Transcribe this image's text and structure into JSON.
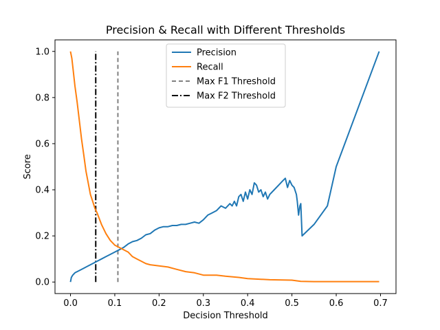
{
  "chart_data": {
    "type": "line",
    "title": "Precision & Recall with Different Thresholds",
    "xlabel": "Decision Threshold",
    "ylabel": "Score",
    "xlim": [
      -0.035,
      0.735
    ],
    "ylim": [
      -0.05,
      1.05
    ],
    "xticks": [
      0.0,
      0.1,
      0.2,
      0.3,
      0.4,
      0.5,
      0.6,
      0.7
    ],
    "yticks": [
      0.0,
      0.2,
      0.4,
      0.6,
      0.8,
      1.0
    ],
    "grid": false,
    "legend_position": "upper center",
    "series": [
      {
        "name": "Precision",
        "color": "#1f77b4",
        "style": "solid",
        "x": [
          0.0,
          0.002,
          0.005,
          0.01,
          0.015,
          0.02,
          0.03,
          0.04,
          0.05,
          0.055,
          0.06,
          0.07,
          0.08,
          0.09,
          0.1,
          0.11,
          0.12,
          0.13,
          0.14,
          0.15,
          0.16,
          0.17,
          0.18,
          0.19,
          0.2,
          0.21,
          0.22,
          0.23,
          0.24,
          0.25,
          0.26,
          0.27,
          0.28,
          0.29,
          0.3,
          0.31,
          0.32,
          0.33,
          0.34,
          0.35,
          0.36,
          0.365,
          0.37,
          0.375,
          0.38,
          0.385,
          0.39,
          0.395,
          0.4,
          0.405,
          0.41,
          0.415,
          0.42,
          0.425,
          0.43,
          0.435,
          0.44,
          0.445,
          0.45,
          0.46,
          0.47,
          0.48,
          0.485,
          0.49,
          0.495,
          0.5,
          0.505,
          0.51,
          0.512,
          0.515,
          0.518,
          0.52,
          0.523,
          0.55,
          0.58,
          0.6,
          0.697
        ],
        "y": [
          0.0,
          0.02,
          0.03,
          0.04,
          0.045,
          0.05,
          0.06,
          0.07,
          0.08,
          0.085,
          0.09,
          0.1,
          0.11,
          0.12,
          0.13,
          0.14,
          0.15,
          0.165,
          0.175,
          0.18,
          0.19,
          0.205,
          0.21,
          0.225,
          0.235,
          0.24,
          0.24,
          0.245,
          0.245,
          0.25,
          0.25,
          0.255,
          0.26,
          0.255,
          0.27,
          0.29,
          0.3,
          0.31,
          0.33,
          0.32,
          0.34,
          0.33,
          0.35,
          0.33,
          0.37,
          0.38,
          0.35,
          0.39,
          0.36,
          0.4,
          0.38,
          0.43,
          0.42,
          0.39,
          0.4,
          0.37,
          0.39,
          0.36,
          0.38,
          0.4,
          0.42,
          0.44,
          0.45,
          0.41,
          0.44,
          0.42,
          0.41,
          0.38,
          0.35,
          0.29,
          0.33,
          0.34,
          0.2,
          0.25,
          0.33,
          0.5,
          1.0
        ]
      },
      {
        "name": "Recall",
        "color": "#ff7f0e",
        "style": "solid",
        "x": [
          0.0,
          0.003,
          0.006,
          0.01,
          0.015,
          0.02,
          0.025,
          0.03,
          0.035,
          0.04,
          0.045,
          0.05,
          0.055,
          0.06,
          0.07,
          0.08,
          0.09,
          0.1,
          0.11,
          0.12,
          0.13,
          0.14,
          0.15,
          0.16,
          0.17,
          0.18,
          0.2,
          0.22,
          0.24,
          0.26,
          0.28,
          0.3,
          0.33,
          0.35,
          0.38,
          0.4,
          0.45,
          0.5,
          0.52,
          0.55,
          0.6,
          0.65,
          0.697
        ],
        "y": [
          1.0,
          0.97,
          0.92,
          0.85,
          0.78,
          0.7,
          0.62,
          0.55,
          0.48,
          0.43,
          0.38,
          0.35,
          0.32,
          0.3,
          0.25,
          0.21,
          0.18,
          0.16,
          0.15,
          0.14,
          0.13,
          0.11,
          0.1,
          0.09,
          0.08,
          0.075,
          0.07,
          0.065,
          0.055,
          0.045,
          0.04,
          0.03,
          0.03,
          0.025,
          0.02,
          0.015,
          0.01,
          0.008,
          0.003,
          0.002,
          0.002,
          0.002,
          0.002
        ]
      }
    ],
    "vlines": [
      {
        "name": "Max F1 Threshold",
        "x": 0.107,
        "color": "#808080",
        "style": "dashed",
        "ymin": 0.0,
        "ymax": 1.0
      },
      {
        "name": "Max F2 Threshold",
        "x": 0.057,
        "color": "#000000",
        "style": "dashdot",
        "ymin": 0.0,
        "ymax": 1.0
      }
    ]
  }
}
